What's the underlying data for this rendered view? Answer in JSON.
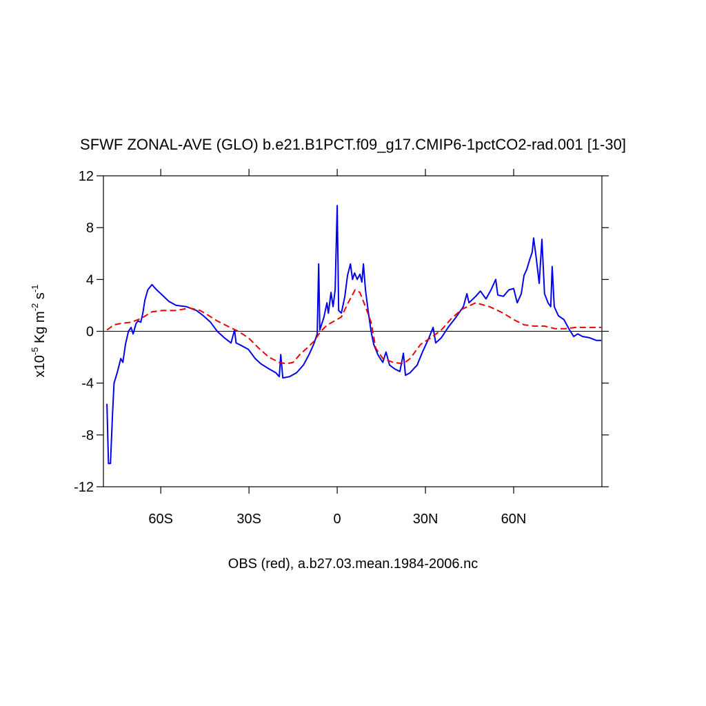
{
  "chart_data": {
    "type": "line",
    "title": "SFWF ZONAL-AVE (GLO) b.e21.B1PCT.f09_g17.CMIP6-1pctCO2-rad.001 [1-30]",
    "ylabel_parts": [
      "x10",
      "-5",
      " Kg m",
      "-2",
      " s",
      "-1"
    ],
    "caption": "OBS (red), a.b27.03.mean.1984-2006.nc",
    "xlim": [
      -79.5,
      90
    ],
    "ylim": [
      -12,
      12
    ],
    "xticks": [
      {
        "value": -60,
        "label": "60S"
      },
      {
        "value": -30,
        "label": "30S"
      },
      {
        "value": 0,
        "label": "0"
      },
      {
        "value": 30,
        "label": "30N"
      },
      {
        "value": 60,
        "label": "60N"
      }
    ],
    "yticks": [
      -12,
      -8,
      -4,
      0,
      4,
      8,
      12
    ],
    "reference_line": 0,
    "series": [
      {
        "color": "#0000ee",
        "dash": "solid",
        "x": [
          -78.3,
          -77.8,
          -77.1,
          -76.4,
          -75.9,
          -74.8,
          -73.6,
          -72.9,
          -72,
          -71,
          -70.1,
          -69.4,
          -68.4,
          -67.7,
          -66.8,
          -66.1,
          -65.4,
          -64.4,
          -63,
          -61.4,
          -59.5,
          -57.2,
          -54.8,
          -51.3,
          -47.8,
          -45.5,
          -43.1,
          -40.8,
          -38.4,
          -36.1,
          -34.9,
          -34.4,
          -32.6,
          -30.2,
          -27.9,
          -26,
          -23.2,
          -20.9,
          -19.7,
          -19.2,
          -18.5,
          -16.2,
          -13.8,
          -11.5,
          -9.6,
          -8,
          -6.8,
          -6.3,
          -5.9,
          -4.5,
          -3.5,
          -3,
          -2.1,
          -1.4,
          -0.7,
          0,
          0.5,
          1.4,
          2.6,
          3.5,
          4.5,
          5.2,
          5.9,
          6.8,
          7.7,
          8.4,
          8.9,
          9.6,
          10.5,
          11.5,
          12.4,
          13.8,
          15.5,
          16.6,
          17.8,
          19.5,
          21.3,
          22.5,
          23.2,
          24.8,
          27.2,
          28.8,
          30.2,
          31.2,
          32.6,
          33.5,
          35.4,
          37.7,
          40.1,
          42.9,
          44.1,
          44.8,
          47.1,
          48.7,
          50.6,
          52.3,
          53.9,
          54.6,
          56.5,
          58.4,
          60,
          61.2,
          62.6,
          63.5,
          64.5,
          65.4,
          66.3,
          66.8,
          67.7,
          68.7,
          69.6,
          70.5,
          71.7,
          72.6,
          73.1,
          73.8,
          75.2,
          77.1,
          79,
          80.4,
          81.8,
          83.4,
          85.8,
          88.1,
          89.8
        ],
        "values": [
          -5.6,
          -10.2,
          -10.2,
          -6.4,
          -4.0,
          -3.2,
          -2.1,
          -2.4,
          -1.0,
          0,
          0.3,
          -0.2,
          0.6,
          0.8,
          0.7,
          1.4,
          2.4,
          3.2,
          3.6,
          3.2,
          2.8,
          2.3,
          2.0,
          1.9,
          1.6,
          1.2,
          0.7,
          0,
          -0.5,
          -0.9,
          0.1,
          -0.9,
          -1.1,
          -1.4,
          -2.1,
          -2.5,
          -2.9,
          -3.2,
          -3.5,
          -1.8,
          -3.6,
          -3.5,
          -3.2,
          -2.6,
          -1.8,
          -1.0,
          -0.2,
          5.2,
          0.1,
          1.1,
          2.2,
          1.4,
          3.0,
          1.9,
          3.2,
          9.7,
          1.6,
          1.4,
          2.7,
          4.3,
          5.2,
          4.0,
          4.5,
          4.0,
          4.4,
          3.8,
          5.2,
          3.2,
          1.6,
          0,
          -1.0,
          -1.8,
          -2.4,
          -1.6,
          -2.6,
          -2.9,
          -3.1,
          -1.7,
          -3.4,
          -3.2,
          -2.6,
          -1.7,
          -1.0,
          -0.5,
          0.3,
          -0.9,
          -0.5,
          0.3,
          1.0,
          1.9,
          2.9,
          2.2,
          2.7,
          3.1,
          2.5,
          3.2,
          4.0,
          2.8,
          2.7,
          3.2,
          3.3,
          2.2,
          2.9,
          4.3,
          4.8,
          5.5,
          6.1,
          7.2,
          5.6,
          3.7,
          7.1,
          2.9,
          2.2,
          1.9,
          5.0,
          1.9,
          1.2,
          0.9,
          0.1,
          -0.4,
          -0.2,
          -0.4,
          -0.5,
          -0.7,
          -0.7
        ]
      },
      {
        "color": "#ee0000",
        "dash": "dashed",
        "x": [
          -78.3,
          -77.1,
          -75.9,
          -73.6,
          -70,
          -66.6,
          -63,
          -59.5,
          -54.8,
          -50.2,
          -46.6,
          -44.3,
          -40.8,
          -37.3,
          -33.7,
          -30.2,
          -26.7,
          -23.2,
          -19.7,
          -17.3,
          -15,
          -12.7,
          -10.3,
          -8,
          -5.6,
          -3.3,
          -0.9,
          1.4,
          3.7,
          6.1,
          7.7,
          9.6,
          11.5,
          13.1,
          15.5,
          19,
          22.5,
          24.8,
          28.4,
          31.9,
          35.4,
          38.9,
          42.4,
          47.1,
          51.8,
          56.5,
          60,
          63.5,
          67,
          70.5,
          74.1,
          77.6,
          81.1,
          85.8,
          89.8
        ],
        "values": [
          0.1,
          0.3,
          0.5,
          0.6,
          0.7,
          1.0,
          1.5,
          1.6,
          1.6,
          1.8,
          1.6,
          1.3,
          0.8,
          0.4,
          0,
          -0.5,
          -1.3,
          -2.0,
          -2.4,
          -2.5,
          -2.4,
          -1.8,
          -1.3,
          -0.8,
          0,
          0.5,
          0.8,
          1.1,
          2.2,
          3.2,
          3.0,
          1.9,
          0.7,
          -1.3,
          -2.1,
          -2.4,
          -2.5,
          -2.1,
          -1.0,
          -0.5,
          0.1,
          1.0,
          1.7,
          2.2,
          1.9,
          1.4,
          0.9,
          0.5,
          0.4,
          0.4,
          0.2,
          0.2,
          0.3,
          0.3,
          0.3
        ]
      }
    ]
  }
}
